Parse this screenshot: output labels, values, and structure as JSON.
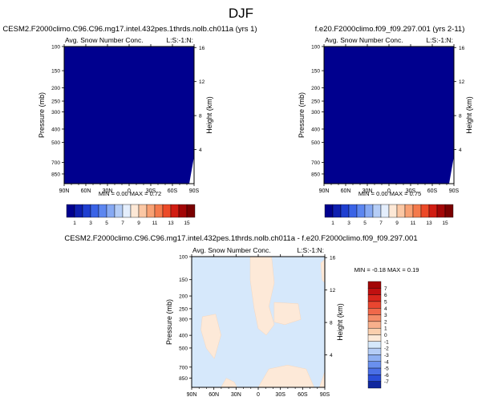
{
  "page": {
    "title": "DJF"
  },
  "colors": {
    "field_saturated": "#00008e",
    "diff_background": "#d6e8fb",
    "diff_blob": "#fde9d8",
    "diff_blob_edge": "#f6d7bd"
  },
  "chart_data": [
    {
      "type": "heatmap",
      "id": "panel-a",
      "title": "CESM2.F2000climo.C96.C96.mg17.intel.432pes.1thrds.nolb.ch011a (yrs 1)",
      "subtitle_left": "Avg. Snow Number Conc.",
      "subtitle_right": "L:S:-1:N:",
      "xlabel": "",
      "ylabel": "Pressure (mb)",
      "ylabel_right": "Height (km)",
      "x_ticks": [
        "90N",
        "60N",
        "30N",
        "0",
        "30S",
        "60S",
        "90S"
      ],
      "y_ticks": [
        "100",
        "150",
        "200",
        "250",
        "300",
        "400",
        "500",
        "700",
        "850"
      ],
      "y_ticks_right": [
        "16",
        "12",
        "8",
        "4"
      ],
      "x_range": [
        "90N",
        "90S"
      ],
      "y_range_mb": [
        100,
        1000
      ],
      "y_scale": "log (pressure)",
      "stats": "MIN =  0.00  MAX =  0.72",
      "min": 0.0,
      "max": 0.72,
      "field_description": "entirely below lowest contour (deepest blue), small white wedge near 90S at the surface",
      "colorbar": {
        "orientation": "horizontal",
        "labels": [
          "1",
          "3",
          "5",
          "7",
          "9",
          "11",
          "13",
          "15"
        ],
        "colors": [
          "#00008e",
          "#0e1fb0",
          "#1f3fd0",
          "#3a63e6",
          "#5c86f0",
          "#86a9f3",
          "#b5cdf6",
          "#e4eefc",
          "#fde8d6",
          "#fbc7a4",
          "#f8a174",
          "#f47a4c",
          "#ec4a28",
          "#d11d12",
          "#a30606",
          "#7a0000"
        ]
      }
    },
    {
      "type": "heatmap",
      "id": "panel-b",
      "title": "f.e20.F2000climo.f09_f09.297.001 (yrs 2-11)",
      "subtitle_left": "Avg. Snow Number Conc.",
      "subtitle_right": "L:S:-1:N:",
      "xlabel": "",
      "ylabel": "Pressure (mb)",
      "ylabel_right": "Height (km)",
      "x_ticks": [
        "90N",
        "60N",
        "30N",
        "0",
        "30S",
        "60S",
        "90S"
      ],
      "y_ticks": [
        "100",
        "150",
        "200",
        "250",
        "300",
        "400",
        "500",
        "700",
        "850"
      ],
      "y_ticks_right": [
        "16",
        "12",
        "8",
        "4"
      ],
      "x_range": [
        "90N",
        "90S"
      ],
      "y_range_mb": [
        100,
        1000
      ],
      "y_scale": "log (pressure)",
      "stats": "MIN =  0.00  MAX =  0.75",
      "min": 0.0,
      "max": 0.75,
      "field_description": "entirely below lowest contour (deepest blue), small white wedge near 90S at the surface",
      "colorbar": {
        "orientation": "horizontal",
        "labels": [
          "1",
          "3",
          "5",
          "7",
          "9",
          "11",
          "13",
          "15"
        ],
        "colors": [
          "#00008e",
          "#0e1fb0",
          "#1f3fd0",
          "#3a63e6",
          "#5c86f0",
          "#86a9f3",
          "#b5cdf6",
          "#e4eefc",
          "#fde8d6",
          "#fbc7a4",
          "#f8a174",
          "#f47a4c",
          "#ec4a28",
          "#d11d12",
          "#a30606",
          "#7a0000"
        ]
      }
    },
    {
      "type": "heatmap",
      "id": "panel-diff",
      "title": "CESM2.F2000climo.C96.C96.mg17.intel.432pes.1thrds.nolb.ch011a - f.e20.F2000climo.f09_f09.297.001",
      "subtitle_left": "Avg. Snow Number Conc.",
      "subtitle_right": "L:S:-1:N:",
      "xlabel": "",
      "ylabel": "Pressure (mb)",
      "ylabel_right": "Height (km)",
      "x_ticks": [
        "90N",
        "60N",
        "30N",
        "0",
        "30S",
        "60S",
        "90S"
      ],
      "y_ticks": [
        "100",
        "150",
        "200",
        "250",
        "300",
        "400",
        "500",
        "700",
        "850"
      ],
      "y_ticks_right": [
        "16",
        "12",
        "8",
        "4"
      ],
      "x_range": [
        "90N",
        "90S"
      ],
      "y_range_mb": [
        100,
        1000
      ],
      "y_scale": "log (pressure)",
      "stats": "MIN = -0.18  MAX =  0.19",
      "min": -0.18,
      "max": 0.19,
      "field_description": "mostly in the (-1,0) interval (light blue) with scattered (0,1) patches (light peach)",
      "colorbar": {
        "orientation": "vertical",
        "labels": [
          "7",
          "6",
          "5",
          "4",
          "3",
          "2",
          "1",
          "0",
          "-1",
          "-2",
          "-3",
          "-4",
          "-5",
          "-6",
          "-7"
        ],
        "colors": [
          "#a30606",
          "#c01010",
          "#d8261c",
          "#e94630",
          "#f0684a",
          "#f48c68",
          "#f8b08c",
          "#fbcfae",
          "#fde9d8",
          "#d6e8fb",
          "#b5cdf6",
          "#8fb0f2",
          "#6a90ee",
          "#4a6fe6",
          "#2a4ed8",
          "#10279e"
        ]
      }
    }
  ]
}
